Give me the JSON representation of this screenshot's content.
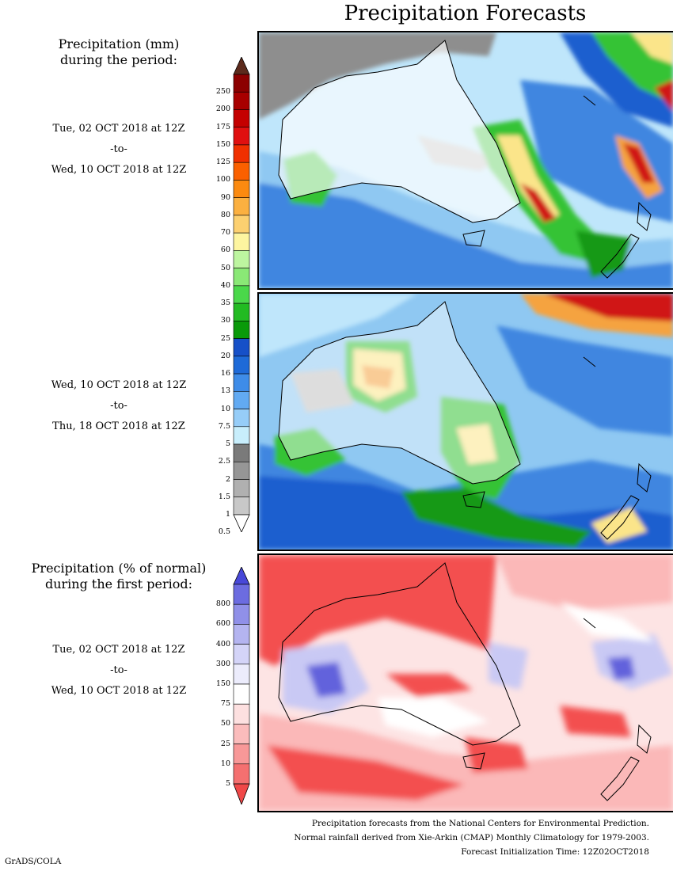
{
  "title": "Precipitation Forecasts",
  "section1": {
    "title_line1": "Precipitation (mm)",
    "title_line2": "during the period:",
    "period1": {
      "start": "Tue, 02 OCT 2018 at 12Z",
      "sep": "-to-",
      "end": "Wed, 10 OCT 2018 at 12Z"
    },
    "period2": {
      "start": "Wed, 10 OCT 2018 at 12Z",
      "sep": "-to-",
      "end": "Thu, 18 OCT 2018 at 12Z"
    },
    "colorbar": {
      "labels": [
        "250",
        "200",
        "175",
        "150",
        "125",
        "100",
        "90",
        "80",
        "70",
        "60",
        "50",
        "40",
        "35",
        "30",
        "25",
        "20",
        "16",
        "13",
        "10",
        "7.5",
        "5",
        "2.5",
        "2",
        "1.5",
        "1",
        "0.5"
      ],
      "colors": [
        "#5c2a1c",
        "#8c0000",
        "#a80000",
        "#c40000",
        "#e01010",
        "#f03000",
        "#fa6000",
        "#fb8a10",
        "#fbb040",
        "#fcd070",
        "#fdf5a0",
        "#bdf5a0",
        "#8ae876",
        "#4ad84a",
        "#22bb22",
        "#0a9a0a",
        "#1650c8",
        "#1e6ad8",
        "#3e8ce8",
        "#62aaf2",
        "#96cdf8",
        "#c8eefc",
        "#7a7a7a",
        "#969696",
        "#b0b0b0",
        "#c8c8c8",
        "#ffffff"
      ]
    }
  },
  "section2": {
    "title_line1": "Precipitation (% of normal)",
    "title_line2": "during the first period:",
    "period": {
      "start": "Tue, 02 OCT 2018 at 12Z",
      "sep": "-to-",
      "end": "Wed, 10 OCT 2018 at 12Z"
    },
    "colorbar": {
      "labels": [
        "800",
        "600",
        "400",
        "300",
        "150",
        "75",
        "50",
        "25",
        "10",
        "5"
      ],
      "colors": [
        "#4848d8",
        "#6c6ce0",
        "#9090e8",
        "#b4b4f0",
        "#d4d4f8",
        "#ececfc",
        "#ffffff",
        "#fde0e0",
        "#fbbcbc",
        "#f89898",
        "#f47070",
        "#f04848"
      ]
    }
  },
  "footnotes": [
    "Precipitation forecasts from the National Centers for Environmental Prediction.",
    "Normal rainfall derived from Xie-Arkin (CMAP) Monthly Climatology for 1979-2003.",
    "Forecast Initialization Time: 12Z02OCT2018"
  ],
  "credit": "GrADS/COLA",
  "map_colors": {
    "ocean_light": "#bfe6fb",
    "ocean_mid": "#8fc8f2",
    "blue": "#3f86e0",
    "dark_blue": "#1f5fcf",
    "green": "#35c335",
    "light_green": "#8fe08f",
    "dark_green": "#129912",
    "yellow": "#fbe58a",
    "orange": "#f5a340",
    "red": "#d01818",
    "gray": "#8e8e8e",
    "light_gray": "#c2c2c2",
    "anom_red": "#f35050",
    "anom_pink": "#fbb8b8",
    "anom_lightpink": "#fde4e4",
    "anom_blue": "#6262dc",
    "anom_lightblue": "#c9c9f4"
  }
}
